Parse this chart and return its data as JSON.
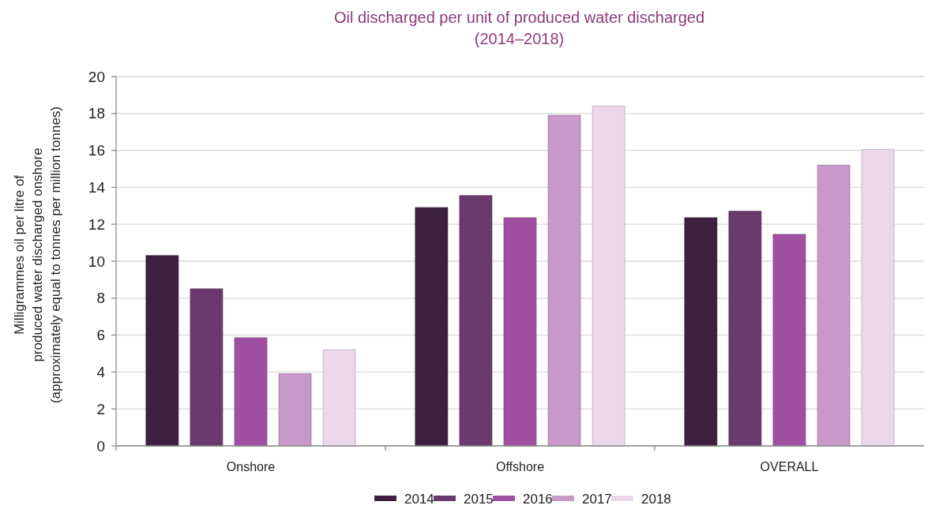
{
  "chart_data": {
    "type": "bar",
    "title": "Oil discharged per unit of produced water discharged\n(2014–2018)",
    "ylabel": "Milligrammes oil per litre of\nproduced water discharged onshore\n(approximately equal to tonnes per million tonnes)",
    "categories": [
      "Onshore",
      "Offshore",
      "OVERALL"
    ],
    "series": [
      {
        "name": "2014",
        "color": "#3d2040",
        "values": [
          10.3,
          12.9,
          12.35
        ]
      },
      {
        "name": "2015",
        "color": "#6a3a6e",
        "values": [
          8.5,
          13.55,
          12.7
        ]
      },
      {
        "name": "2016",
        "color": "#a050a0",
        "values": [
          5.85,
          12.35,
          11.45
        ]
      },
      {
        "name": "2017",
        "color": "#c898c8",
        "values": [
          3.9,
          17.9,
          15.2
        ]
      },
      {
        "name": "2018",
        "color": "#ead8ea",
        "values": [
          5.2,
          18.4,
          16.05
        ]
      }
    ],
    "ylim": [
      0,
      20
    ],
    "yticks": [
      0,
      2,
      4,
      6,
      8,
      10,
      12,
      14,
      16,
      18,
      20
    ],
    "grid": "y",
    "legend": "bottom"
  }
}
